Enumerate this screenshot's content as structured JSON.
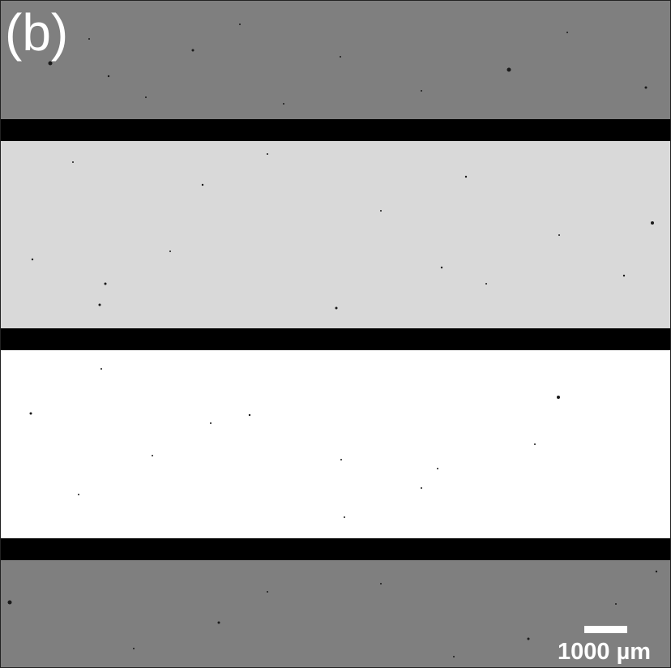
{
  "figure": {
    "panel_label": "(b)",
    "scale_bar_label": "1000 µm",
    "colors": {
      "top_band": "#7f7f7f",
      "light_band": "#d9d9d9",
      "white_band": "#ffffff",
      "dark_bars": "#000000",
      "bottom_band": "#7f7f7f",
      "annotation_text": "#ffffff"
    }
  }
}
